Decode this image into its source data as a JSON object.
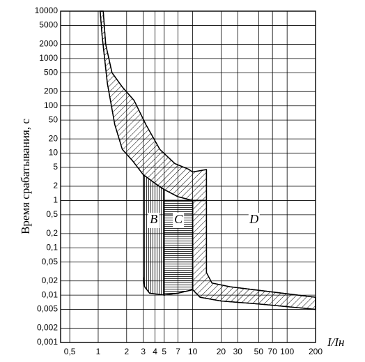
{
  "chart_data": {
    "type": "area",
    "ylabel": "Время срабатывания, с",
    "xlabel": "I/Iн",
    "xscale": "log",
    "yscale": "log",
    "grid": true,
    "xlim": [
      0.4,
      200
    ],
    "ylim": [
      0.001,
      10000
    ],
    "xticks": [
      {
        "value": 0.5,
        "label": "0,5"
      },
      1,
      2,
      3,
      4,
      5,
      7,
      10,
      20,
      30,
      50,
      70,
      100,
      200
    ],
    "yticks": [
      {
        "value": 0.001,
        "label": "0,001"
      },
      {
        "value": 0.002,
        "label": "0,002"
      },
      {
        "value": 0.005,
        "label": "0,005"
      },
      {
        "value": 0.01,
        "label": "0,01"
      },
      {
        "value": 0.02,
        "label": "0,02"
      },
      {
        "value": 0.05,
        "label": "0,05"
      },
      {
        "value": 0.1,
        "label": "0,1"
      },
      {
        "value": 0.2,
        "label": "0,2"
      },
      {
        "value": 0.5,
        "label": "0,5"
      },
      1,
      2,
      5,
      10,
      20,
      50,
      100,
      200,
      500,
      1000,
      2000,
      5000,
      10000
    ],
    "series": [
      {
        "hatch": "diagonal",
        "color": "#000000",
        "x": [
          1.13,
          1.2,
          1.4,
          1.8,
          2.4,
          3.2,
          4.5,
          6.5,
          9,
          10,
          14,
          14,
          10,
          7,
          5,
          4,
          3,
          2.3,
          1.8,
          1.5,
          1.25,
          1.1,
          1.05
        ],
        "values": [
          10000,
          2000,
          500,
          250,
          130,
          40,
          12,
          6,
          4.6,
          4,
          4.5,
          1,
          1,
          1.2,
          1.7,
          2.3,
          3.5,
          7,
          12,
          40,
          300,
          3000,
          10000
        ]
      },
      {
        "name": "B",
        "hatch": "vertical",
        "color": "#000000",
        "x": [
          3,
          4,
          5,
          5,
          3.5,
          3.1,
          3
        ],
        "values": [
          3.5,
          2.3,
          1.7,
          0.01,
          0.011,
          0.015,
          0.025
        ]
      },
      {
        "name": "C",
        "hatch": "horizontal",
        "color": "#000000",
        "x": [
          5,
          10,
          10,
          7,
          5
        ],
        "values": [
          1,
          1,
          0.013,
          0.011,
          0.01
        ]
      },
      {
        "name": "D",
        "hatch": "diagonal",
        "color": "#000000",
        "x": [
          10,
          14,
          14,
          16,
          25,
          200,
          200,
          50,
          20,
          12,
          10
        ],
        "values": [
          1,
          1,
          0.03,
          0.018,
          0.015,
          0.009,
          0.005,
          0.0065,
          0.0075,
          0.009,
          0.013
        ]
      }
    ]
  }
}
